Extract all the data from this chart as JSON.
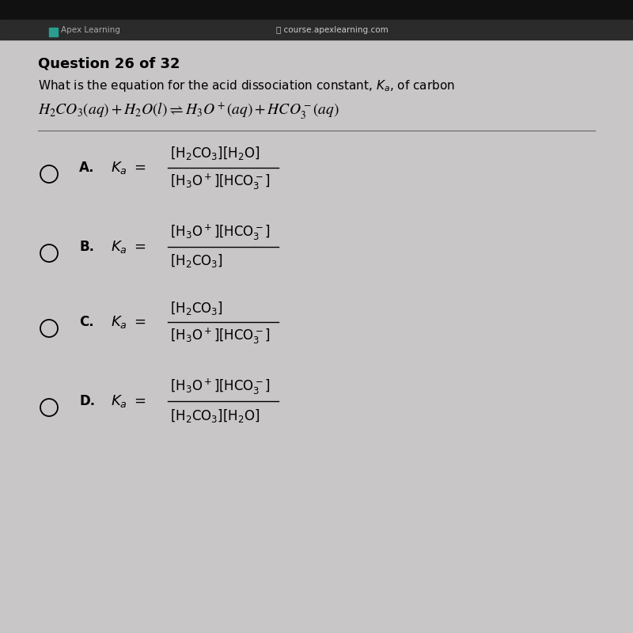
{
  "bg_color": "#c8c6c6",
  "panel_bg": "#c8c6c6",
  "title": "Question 26 of 32",
  "subtitle": "What is the equation for the acid dissociation constant, Kₐ, of carbon",
  "header_bar_color": "#1a1a1a",
  "header_bar2_color": "#2d2d2d",
  "url_text": "🔒 course.apexlearning.com",
  "apex_text": "Apex Learning",
  "options": [
    {
      "label": "A",
      "numerator_parts": [
        "[H₂CO₃]",
        "[H₂O]"
      ],
      "denominator_parts": [
        "[H₃O⁺]",
        "[HCO₃⁻]"
      ],
      "num_latex": [
        "[H_2CO_3]",
        "[H_2O]"
      ],
      "den_latex": [
        "[H_3O^+]",
        "[HCO_3^-]"
      ]
    },
    {
      "label": "B",
      "numerator_parts": [
        "[H₃O⁺]",
        "[HCO₃⁻]"
      ],
      "denominator_parts": [
        "[H₂CO₃]"
      ],
      "num_latex": [
        "[H_3O^+]",
        "[HCO_3^-]"
      ],
      "den_latex": [
        "[H_2CO_3]"
      ]
    },
    {
      "label": "C",
      "numerator_parts": [
        "[H₂CO₃]"
      ],
      "denominator_parts": [
        "[H₃O⁺]",
        "[HCO₃⁻]"
      ],
      "num_latex": [
        "[H_2CO_3]"
      ],
      "den_latex": [
        "[H_3O^+]",
        "[HCO_3^-]"
      ]
    },
    {
      "label": "D",
      "numerator_parts": [
        "[H₃O⁺]",
        "[HCO₃⁻]"
      ],
      "denominator_parts": [
        "[H₂CO₃]",
        "[H₂O]"
      ],
      "num_latex": [
        "[H_3O^+]",
        "[HCO_3^-]"
      ],
      "den_latex": [
        "[H_2CO_3]",
        "[H_2O]"
      ]
    }
  ]
}
